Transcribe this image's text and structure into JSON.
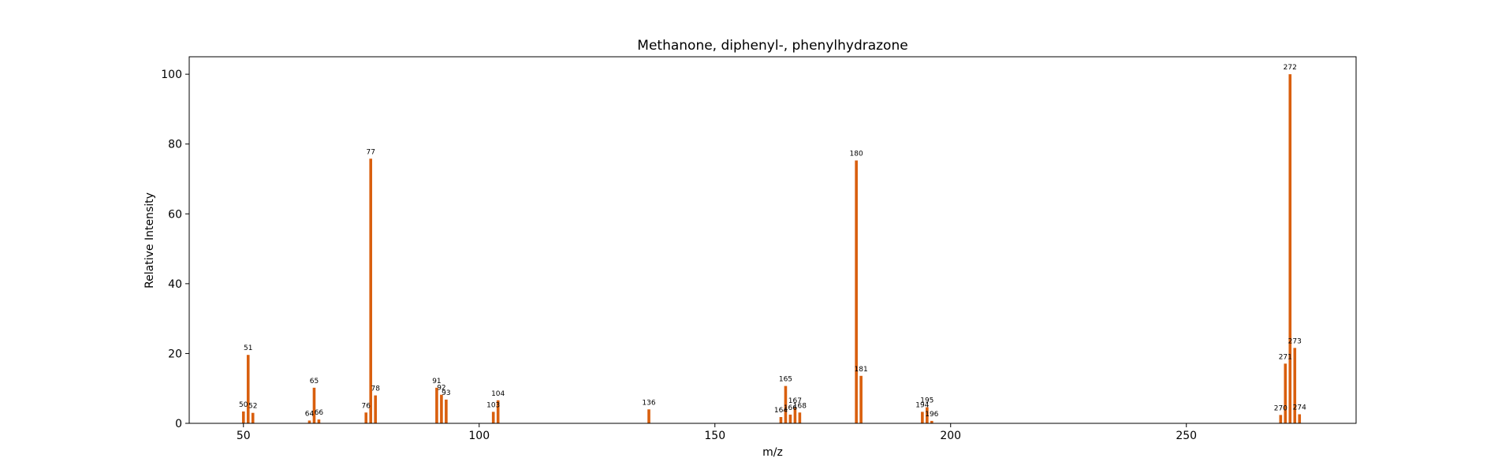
{
  "chart_data": {
    "type": "bar",
    "title": "Methanone, diphenyl-, phenylhydrazone",
    "xlabel": "m/z",
    "ylabel": "Relative Intensity",
    "xlim": [
      38.5,
      286
    ],
    "ylim": [
      0,
      105
    ],
    "xticks": [
      50,
      100,
      150,
      200,
      250
    ],
    "yticks": [
      0,
      20,
      40,
      60,
      80,
      100
    ],
    "grid": false,
    "bar_color": "#d95f0e",
    "peaks": [
      {
        "mz": 50,
        "intensity": 3.4
      },
      {
        "mz": 51,
        "intensity": 19.6
      },
      {
        "mz": 52,
        "intensity": 3.0
      },
      {
        "mz": 64,
        "intensity": 0.8
      },
      {
        "mz": 65,
        "intensity": 10.2
      },
      {
        "mz": 66,
        "intensity": 1.1
      },
      {
        "mz": 76,
        "intensity": 3.1
      },
      {
        "mz": 77,
        "intensity": 75.8
      },
      {
        "mz": 78,
        "intensity": 8.0
      },
      {
        "mz": 91,
        "intensity": 10.2
      },
      {
        "mz": 92,
        "intensity": 8.2
      },
      {
        "mz": 93,
        "intensity": 6.8
      },
      {
        "mz": 103,
        "intensity": 3.3
      },
      {
        "mz": 104,
        "intensity": 6.6
      },
      {
        "mz": 136,
        "intensity": 4.0
      },
      {
        "mz": 164,
        "intensity": 1.8
      },
      {
        "mz": 165,
        "intensity": 10.7
      },
      {
        "mz": 166,
        "intensity": 2.5
      },
      {
        "mz": 167,
        "intensity": 4.5
      },
      {
        "mz": 168,
        "intensity": 3.1
      },
      {
        "mz": 180,
        "intensity": 75.3
      },
      {
        "mz": 181,
        "intensity": 13.6
      },
      {
        "mz": 194,
        "intensity": 3.3
      },
      {
        "mz": 195,
        "intensity": 4.6
      },
      {
        "mz": 196,
        "intensity": 0.7
      },
      {
        "mz": 270,
        "intensity": 2.4
      },
      {
        "mz": 271,
        "intensity": 17.1
      },
      {
        "mz": 272,
        "intensity": 100.0
      },
      {
        "mz": 273,
        "intensity": 21.6
      },
      {
        "mz": 274,
        "intensity": 2.6
      }
    ]
  }
}
